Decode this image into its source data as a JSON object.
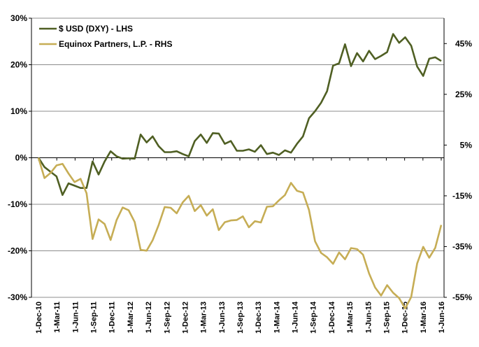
{
  "chart_data": {
    "type": "line",
    "left_axis": {
      "ylim": [
        -30,
        30
      ],
      "ticks": [
        "30%",
        "20%",
        "10%",
        "0%",
        "-10%",
        "-20%",
        "-30%"
      ]
    },
    "right_axis": {
      "ylim": [
        -55,
        55
      ],
      "ticks": [
        "45%",
        "25%",
        "5%",
        "-15%",
        "-35%",
        "-55%"
      ]
    },
    "x_tick_labels": [
      "1-Dec-10",
      "1-Mar-11",
      "1-Jun-11",
      "1-Sep-11",
      "1-Dec-11",
      "1-Mar-12",
      "1-Jun-12",
      "1-Sep-12",
      "1-Dec-12",
      "1-Mar-13",
      "1-Jun-13",
      "1-Sep-13",
      "1-Dec-13",
      "1-Mar-14",
      "1-Jun-14",
      "1-Sep-14",
      "1-Dec-14",
      "1-Mar-15",
      "1-Jun-15",
      "1-Sep-15",
      "1-Dec-15",
      "1-Mar-16",
      "1-Jun-16"
    ],
    "legend": {
      "placement": "top-left"
    },
    "grid": "horizontal",
    "series": [
      {
        "name": "$ USD (DXY) - LHS",
        "axis": "left",
        "color": "#4f5f23",
        "values": [
          0,
          -2,
          -3,
          -4,
          -8,
          -5.5,
          -6,
          -6.5,
          -6.5,
          -0.8,
          -3.6,
          -0.8,
          1.4,
          0.3,
          -0.2,
          -0.1,
          -0.2,
          5,
          3.3,
          4.6,
          2.5,
          1.2,
          1.2,
          1.4,
          0.8,
          0.3,
          3.6,
          5,
          3.2,
          5.3,
          5.2,
          3,
          3.6,
          1.5,
          1.5,
          1.8,
          1.3,
          2.7,
          0.8,
          1.1,
          0.6,
          1.6,
          1.1,
          3,
          4.6,
          8.5,
          10,
          11.8,
          14.3,
          19.8,
          20.3,
          24.4,
          19.7,
          22.5,
          20.7,
          23,
          21.2,
          21.9,
          22.7,
          26.6,
          24.7,
          25.9,
          24.1,
          19.6,
          17.6,
          21.3,
          21.6,
          20.8
        ]
      },
      {
        "name": "Equinox Partners, L.P. - RHS",
        "axis": "right",
        "color": "#c6ad55",
        "values": [
          0,
          -8,
          -6,
          -3,
          -2.4,
          -6.2,
          -9.6,
          -8.3,
          -14,
          -32,
          -24.3,
          -26.1,
          -32.4,
          -24.5,
          -19.6,
          -20.7,
          -25.3,
          -36.3,
          -36.6,
          -32.5,
          -26.5,
          -19.4,
          -19.7,
          -21.9,
          -17.6,
          -15,
          -21,
          -18.7,
          -22.8,
          -20.3,
          -28.5,
          -25.4,
          -24.7,
          -24.5,
          -23.1,
          -27.4,
          -25,
          -25.5,
          -19.3,
          -19.1,
          -16.8,
          -14.7,
          -9.9,
          -13,
          -13.7,
          -20.6,
          -32.9,
          -37.5,
          -39.2,
          -41.8,
          -37.3,
          -40,
          -35.6,
          -36,
          -38.2,
          -45.6,
          -51.1,
          -54.3,
          -50.2,
          -53.2,
          -55.3,
          -59.4,
          -54.9,
          -41.6,
          -35.1,
          -39.4,
          -35.5,
          -26.5
        ]
      }
    ]
  }
}
